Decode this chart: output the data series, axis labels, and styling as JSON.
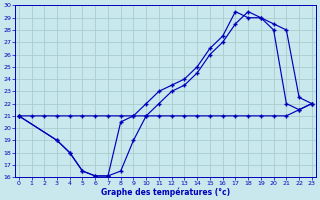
{
  "xlabel": "Graphe des températures (°c)",
  "xlim_min": -0.3,
  "xlim_max": 23.3,
  "ylim_min": 16,
  "ylim_max": 30,
  "xticks": [
    0,
    1,
    2,
    3,
    4,
    5,
    6,
    7,
    8,
    9,
    10,
    11,
    12,
    13,
    14,
    15,
    16,
    17,
    18,
    19,
    20,
    21,
    22,
    23
  ],
  "yticks": [
    16,
    17,
    18,
    19,
    20,
    21,
    22,
    23,
    24,
    25,
    26,
    27,
    28,
    29,
    30
  ],
  "background_color": "#c8e8ed",
  "grid_color": "#b0d8de",
  "line_color": "#0000bb",
  "curve1_x": [
    0,
    1,
    2,
    3,
    4,
    5,
    6,
    7,
    8,
    9,
    10,
    11,
    12,
    13,
    14,
    15,
    16,
    17,
    18,
    19,
    20,
    21,
    22,
    23
  ],
  "curve1_y": [
    21.0,
    21.0,
    21.0,
    21.0,
    21.0,
    21.0,
    21.0,
    21.0,
    21.0,
    21.0,
    21.0,
    21.0,
    21.0,
    21.0,
    21.0,
    21.0,
    21.0,
    21.0,
    21.0,
    21.0,
    21.0,
    21.0,
    21.5,
    22.0
  ],
  "curve2_x": [
    0,
    3,
    4,
    5,
    6,
    7,
    8,
    9,
    10,
    11,
    12,
    13,
    14,
    15,
    16,
    17,
    18,
    19,
    20,
    21,
    22,
    23
  ],
  "curve2_y": [
    21.0,
    19.0,
    18.0,
    16.5,
    16.1,
    16.1,
    16.5,
    19.0,
    21.0,
    22.0,
    23.0,
    23.5,
    24.5,
    26.0,
    27.0,
    28.5,
    29.5,
    29.0,
    28.0,
    22.0,
    21.5,
    22.0
  ],
  "curve3_x": [
    0,
    3,
    4,
    5,
    6,
    7,
    8,
    9,
    10,
    11,
    12,
    13,
    14,
    15,
    16,
    17,
    18,
    19,
    20,
    21,
    22,
    23
  ],
  "curve3_y": [
    21.0,
    19.0,
    18.0,
    16.5,
    16.1,
    16.1,
    20.5,
    21.0,
    22.0,
    23.0,
    23.5,
    24.0,
    25.0,
    26.5,
    27.5,
    29.5,
    29.0,
    29.0,
    28.5,
    28.0,
    22.5,
    22.0
  ]
}
